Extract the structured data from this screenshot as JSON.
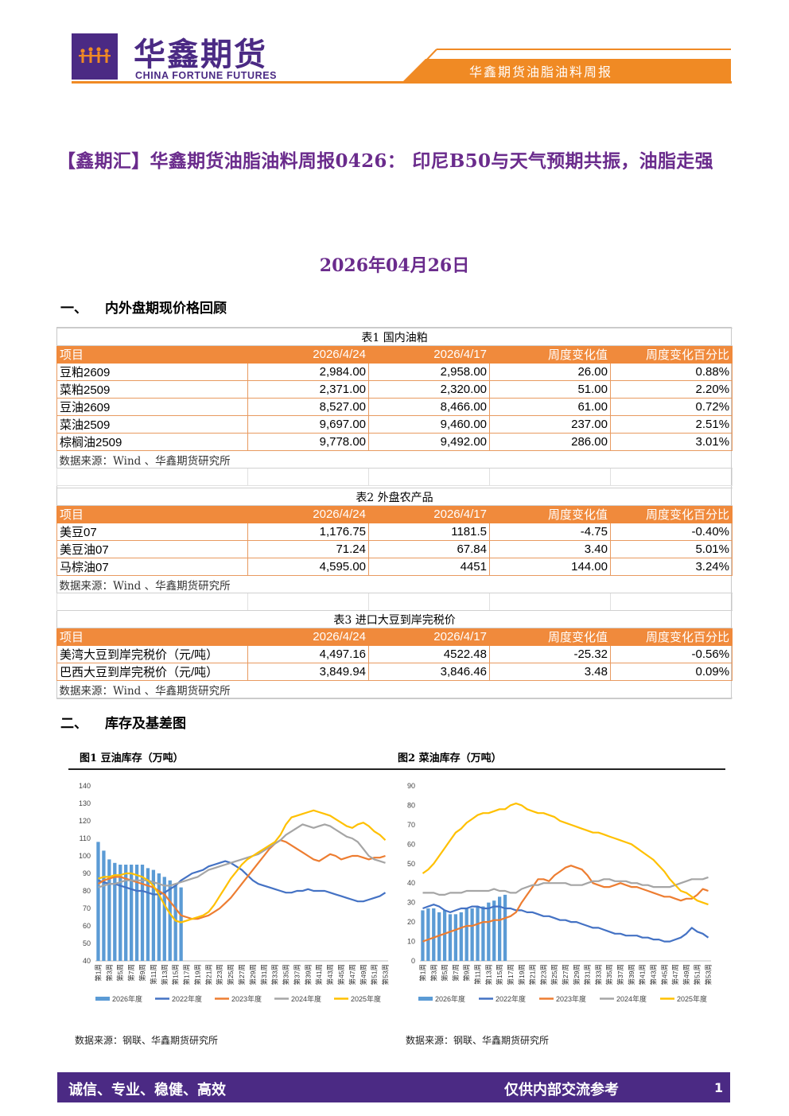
{
  "header": {
    "logo_cn": "华鑫期货",
    "logo_en": "CHINA FORTUNE FUTURES",
    "report_name": "华鑫期货油脂油料周报",
    "brand_color": "#4b2a84",
    "accent_color": "#f08a24"
  },
  "title": "【鑫期汇】华鑫期货油脂油料周报0426： 印尼B50与天气预期共振，油脂走强",
  "date": "2026年04月26日",
  "section1": {
    "num": "一、",
    "label": "内外盘期现价格回顾"
  },
  "section2": {
    "num": "二、",
    "label": "库存及基差图"
  },
  "tables": [
    {
      "caption": "表1 国内油粕",
      "headers": [
        "项目",
        "2026/4/24",
        "2026/4/17",
        "周度变化值",
        "周度变化百分比"
      ],
      "rows": [
        [
          "豆粕2609",
          "2,984.00",
          "2,958.00",
          "26.00",
          "0.88%"
        ],
        [
          "菜粕2509",
          "2,371.00",
          "2,320.00",
          "51.00",
          "2.20%"
        ],
        [
          "豆油2609",
          "8,527.00",
          "8,466.00",
          "61.00",
          "0.72%"
        ],
        [
          "菜油2509",
          "9,697.00",
          "9,460.00",
          "237.00",
          "2.51%"
        ],
        [
          "棕榈油2509",
          "9,778.00",
          "9,492.00",
          "286.00",
          "3.01%"
        ]
      ],
      "source": "数据来源：Wind 、华鑫期货研究所"
    },
    {
      "caption": "表2 外盘农产品",
      "headers": [
        "项目",
        "2026/4/24",
        "2026/4/17",
        "周度变化值",
        "周度变化百分比"
      ],
      "rows": [
        [
          "美豆07",
          "1,176.75",
          "1181.5",
          "-4.75",
          "-0.40%"
        ],
        [
          "美豆油07",
          "71.24",
          "67.84",
          "3.40",
          "5.01%"
        ],
        [
          "马棕油07",
          "4,595.00",
          "4451",
          "144.00",
          "3.24%"
        ]
      ],
      "source": "数据来源：Wind 、华鑫期货研究所"
    },
    {
      "caption": "表3 进口大豆到岸完税价",
      "headers": [
        "项目",
        "2026/4/24",
        "2026/4/17",
        "周度变化值",
        "周度变化百分比"
      ],
      "rows": [
        [
          "美湾大豆到岸完税价（元/吨）",
          "4,497.16",
          "4522.48",
          "-25.32",
          "-0.56%"
        ],
        [
          "巴西大豆到岸完税价（元/吨）",
          "3,849.94",
          "3,846.46",
          "3.48",
          "0.09%"
        ]
      ],
      "source": "数据来源：Wind 、华鑫期货研究所"
    }
  ],
  "chart_data": [
    {
      "type": "line",
      "title": "图1 豆油库存（万吨）",
      "source": "数据来源：钢联、华鑫期货研究所",
      "ylim": [
        40,
        140
      ],
      "yticks": [
        40,
        50,
        60,
        70,
        80,
        90,
        100,
        110,
        120,
        130,
        140
      ],
      "xticks": [
        "第1周",
        "第3周",
        "第5周",
        "第7周",
        "第9周",
        "第11周",
        "第13周",
        "第15周",
        "第17周",
        "第19周",
        "第21周",
        "第23周",
        "第25周",
        "第27周",
        "第29周",
        "第31周",
        "第33周",
        "第35周",
        "第37周",
        "第39周",
        "第41周",
        "第43周",
        "第45周",
        "第47周",
        "第49周",
        "第51周",
        "第53周"
      ],
      "legend": [
        "2026年度",
        "2022年度",
        "2023年度",
        "2024年度",
        "2025年度"
      ],
      "legend_placement": "bottom",
      "colors": {
        "2026年度": "#5b9bd5",
        "2022年度": "#4472c4",
        "2023年度": "#ed7d31",
        "2024年度": "#a5a5a5",
        "2025年度": "#ffc000"
      },
      "bars_2026": [
        108,
        103,
        98,
        96,
        95,
        95,
        95,
        95,
        95,
        93,
        92,
        90,
        88,
        86,
        83,
        82
      ],
      "series": [
        {
          "name": "2022年度",
          "values": [
            86,
            85,
            84,
            84,
            83,
            82,
            81,
            80,
            80,
            79,
            78,
            78,
            79,
            81,
            83,
            86,
            88,
            90,
            91,
            92,
            94,
            95,
            96,
            97,
            96,
            94,
            92,
            89,
            86,
            84,
            83,
            82,
            81,
            80,
            79,
            79,
            80,
            80,
            81,
            80,
            80,
            80,
            79,
            78,
            77,
            76,
            75,
            74,
            74,
            75,
            76,
            77,
            79
          ]
        },
        {
          "name": "2023年度",
          "values": [
            84,
            86,
            87,
            88,
            88,
            87,
            86,
            85,
            84,
            83,
            82,
            80,
            78,
            74,
            70,
            66,
            65,
            64,
            64,
            65,
            66,
            68,
            70,
            73,
            76,
            80,
            84,
            88,
            92,
            96,
            100,
            104,
            107,
            109,
            108,
            106,
            104,
            102,
            100,
            98,
            97,
            99,
            101,
            100,
            98,
            99,
            100,
            100,
            99,
            98,
            99,
            99,
            100
          ]
        },
        {
          "name": "2024年度",
          "values": [
            82,
            83,
            84,
            84,
            85,
            86,
            86,
            86,
            86,
            86,
            85,
            84,
            83,
            83,
            84,
            85,
            86,
            87,
            88,
            90,
            92,
            93,
            94,
            95,
            96,
            97,
            98,
            99,
            100,
            101,
            103,
            105,
            107,
            109,
            112,
            114,
            116,
            118,
            117,
            116,
            117,
            118,
            117,
            115,
            113,
            111,
            110,
            108,
            104,
            100,
            98,
            97,
            96
          ]
        },
        {
          "name": "2025年度",
          "values": [
            87,
            88,
            88,
            89,
            89,
            90,
            90,
            89,
            88,
            86,
            83,
            78,
            72,
            67,
            63,
            62,
            63,
            64,
            65,
            66,
            68,
            72,
            77,
            82,
            87,
            91,
            95,
            98,
            100,
            102,
            104,
            106,
            108,
            112,
            118,
            122,
            123,
            124,
            125,
            126,
            125,
            124,
            123,
            121,
            119,
            117,
            116,
            118,
            119,
            117,
            114,
            112,
            109
          ]
        }
      ]
    },
    {
      "type": "line",
      "title": "图2 菜油库存（万吨）",
      "source": "数据来源：钢联、华鑫期货研究所",
      "ylim": [
        0,
        90
      ],
      "yticks": [
        0,
        10,
        20,
        30,
        40,
        50,
        60,
        70,
        80,
        90
      ],
      "xticks": [
        "第1周",
        "第3周",
        "第5周",
        "第7周",
        "第9周",
        "第11周",
        "第13周",
        "第15周",
        "第17周",
        "第19周",
        "第21周",
        "第23周",
        "第25周",
        "第27周",
        "第29周",
        "第31周",
        "第33周",
        "第35周",
        "第37周",
        "第39周",
        "第41周",
        "第43周",
        "第45周",
        "第47周",
        "第49周",
        "第51周",
        "第53周"
      ],
      "legend": [
        "2026年度",
        "2022年度",
        "2023年度",
        "2024年度",
        "2025年度"
      ],
      "legend_placement": "bottom",
      "colors": {
        "2026年度": "#5b9bd5",
        "2022年度": "#4472c4",
        "2023年度": "#ed7d31",
        "2024年度": "#a5a5a5",
        "2025年度": "#ffc000"
      },
      "bars_2026": [
        26,
        27,
        27,
        25,
        26,
        24,
        24,
        25,
        27,
        27,
        28,
        28,
        30,
        31,
        33,
        34
      ],
      "series": [
        {
          "name": "2022年度",
          "values": [
            27,
            28,
            29,
            28,
            26,
            25,
            26,
            27,
            27,
            28,
            28,
            27,
            27,
            28,
            28,
            27,
            27,
            26,
            26,
            25,
            25,
            24,
            23,
            23,
            22,
            21,
            21,
            20,
            20,
            19,
            18,
            17,
            17,
            16,
            15,
            14,
            14,
            13,
            13,
            13,
            12,
            12,
            11,
            11,
            10,
            10,
            11,
            12,
            14,
            17,
            15,
            14,
            12
          ]
        },
        {
          "name": "2023年度",
          "values": [
            10,
            11,
            12,
            13,
            14,
            15,
            16,
            17,
            18,
            18,
            19,
            20,
            20,
            21,
            21,
            22,
            23,
            25,
            30,
            34,
            38,
            42,
            42,
            41,
            44,
            46,
            48,
            49,
            48,
            47,
            44,
            40,
            39,
            38,
            38,
            39,
            40,
            39,
            38,
            38,
            37,
            36,
            35,
            34,
            33,
            33,
            32,
            31,
            32,
            32,
            34,
            37,
            36
          ]
        },
        {
          "name": "2024年度",
          "values": [
            35,
            35,
            35,
            34,
            34,
            35,
            35,
            35,
            36,
            36,
            36,
            36,
            36,
            37,
            36,
            36,
            35,
            35,
            37,
            38,
            39,
            39,
            40,
            40,
            40,
            40,
            40,
            39,
            39,
            39,
            40,
            41,
            41,
            42,
            42,
            41,
            41,
            41,
            40,
            40,
            39,
            39,
            38,
            38,
            38,
            38,
            39,
            40,
            41,
            42,
            42,
            42,
            43
          ]
        },
        {
          "name": "2025年度",
          "values": [
            45,
            47,
            50,
            54,
            58,
            62,
            66,
            68,
            71,
            73,
            75,
            76,
            76,
            77,
            78,
            78,
            80,
            81,
            80,
            78,
            77,
            76,
            76,
            75,
            74,
            72,
            71,
            70,
            69,
            68,
            67,
            66,
            66,
            65,
            64,
            63,
            62,
            61,
            60,
            58,
            56,
            54,
            52,
            49,
            46,
            42,
            39,
            36,
            35,
            33,
            31,
            30,
            29
          ]
        }
      ]
    }
  ],
  "footer": {
    "left": "诚信、专业、稳健、高效",
    "right": "仅供内部交流参考",
    "page": "1"
  }
}
